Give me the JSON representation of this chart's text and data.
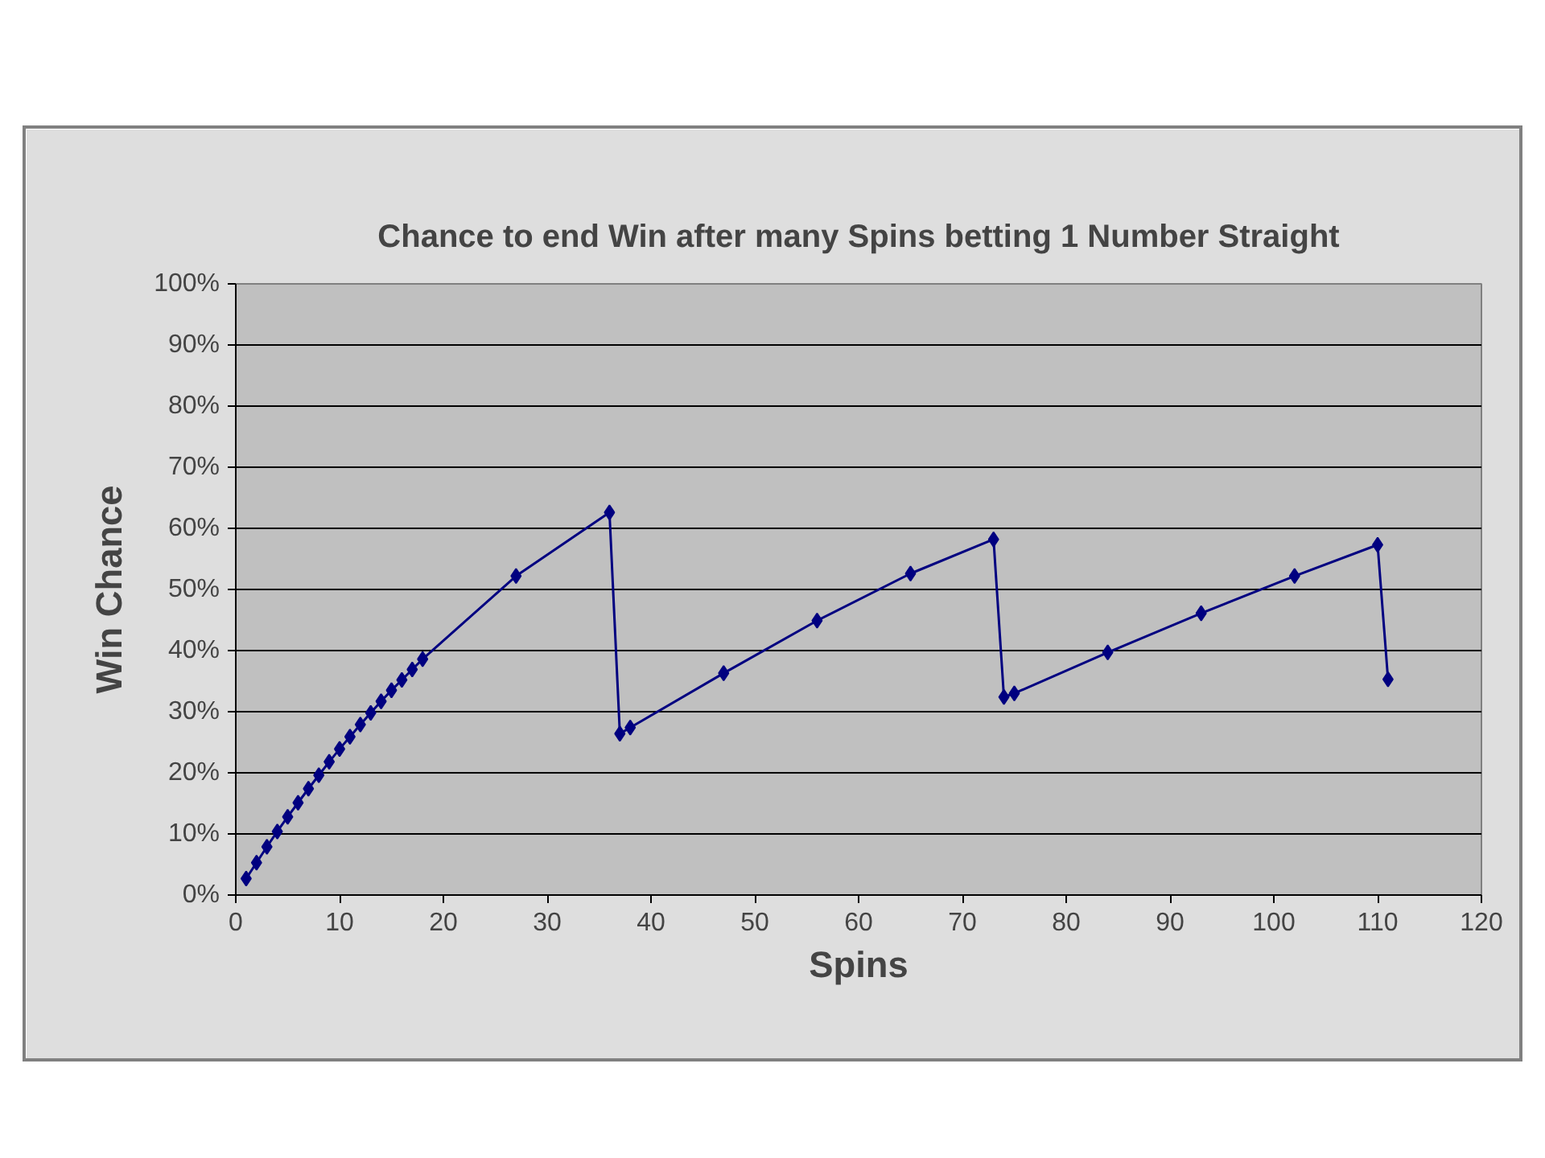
{
  "chart_data": {
    "type": "line",
    "title": "Chance to end Win after many Spins betting 1 Number Straight",
    "xlabel": "Spins",
    "ylabel": "Win Chance",
    "x": [
      1,
      2,
      3,
      4,
      5,
      6,
      7,
      8,
      9,
      10,
      11,
      12,
      13,
      14,
      15,
      16,
      17,
      18,
      27,
      36,
      37,
      38,
      47,
      56,
      65,
      73,
      74,
      75,
      84,
      93,
      102,
      110,
      111
    ],
    "series": [
      {
        "color": "#000080",
        "values": [
          2.7,
          5.3,
          7.9,
          10.4,
          12.8,
          15.1,
          17.4,
          19.6,
          21.8,
          23.9,
          25.9,
          27.9,
          29.8,
          31.7,
          33.5,
          35.2,
          36.9,
          38.6,
          52.2,
          62.6,
          26.4,
          27.4,
          36.3,
          44.9,
          52.6,
          58.2,
          32.4,
          33.0,
          39.7,
          46.1,
          52.2,
          57.3,
          35.3
        ]
      }
    ],
    "xlim": [
      0,
      120
    ],
    "xticks": [
      0,
      10,
      20,
      30,
      40,
      50,
      60,
      70,
      80,
      90,
      100,
      110,
      120
    ],
    "ylim": [
      0,
      100
    ],
    "yticks": [
      {
        "value": 0,
        "label": "0%"
      },
      {
        "value": 10,
        "label": "10%"
      },
      {
        "value": 20,
        "label": "20%"
      },
      {
        "value": 30,
        "label": "30%"
      },
      {
        "value": 40,
        "label": "40%"
      },
      {
        "value": 50,
        "label": "50%"
      },
      {
        "value": 60,
        "label": "60%"
      },
      {
        "value": 70,
        "label": "70%"
      },
      {
        "value": 80,
        "label": "80%"
      },
      {
        "value": 90,
        "label": "90%"
      },
      {
        "value": 100,
        "label": "100%"
      }
    ],
    "grid": "y",
    "marker": "diamond",
    "line_style": "solid"
  }
}
